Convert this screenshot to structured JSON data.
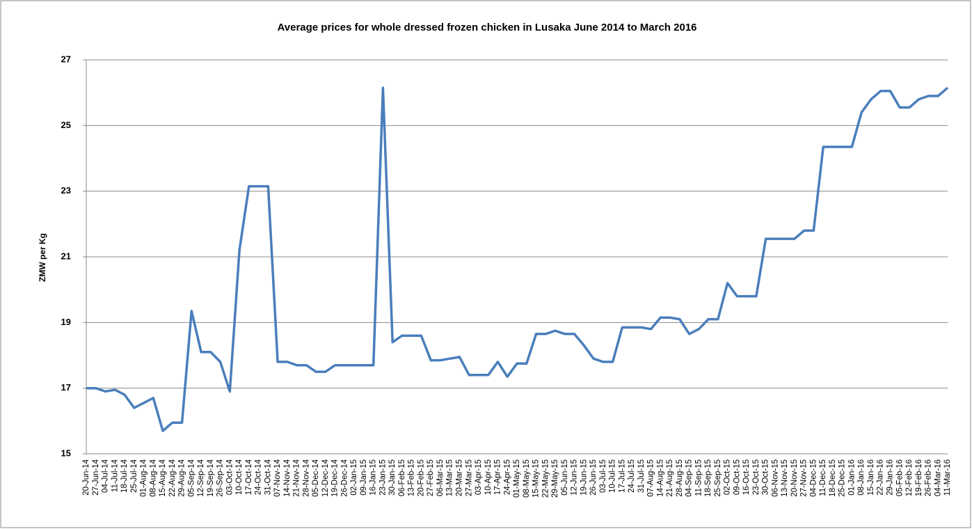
{
  "chart_data": {
    "type": "line",
    "title": "Average prices for whole dressed frozen chicken in Lusaka June 2014 to  March 2016",
    "y_label": "ZMW per Kg",
    "categories": [
      "20-Jun-14",
      "27-Jun-14",
      "04-Jul-14",
      "11-Jul-14",
      "18-Jul-14",
      "25-Jul-14",
      "01-Aug-14",
      "08-Aug-14",
      "15-Aug-14",
      "22-Aug-14",
      "29-Aug-14",
      "05-Sep-14",
      "12-Sep-14",
      "19-Sep-14",
      "26-Sep-14",
      "03-Oct-14",
      "10-Oct-14",
      "17-Oct-14",
      "24-Oct-14",
      "31-Oct-14",
      "07-Nov-14",
      "14-Nov-14",
      "21-Nov-14",
      "28-Nov-14",
      "05-Dec-14",
      "12-Dec-14",
      "19-Dec-14",
      "26-Dec-14",
      "02-Jan-15",
      "09-Jan-15",
      "16-Jan-15",
      "23-Jan-15",
      "30-Jan-15",
      "06-Feb-15",
      "13-Feb-15",
      "20-Feb-15",
      "27-Feb-15",
      "06-Mar-15",
      "13-Mar-15",
      "20-Mar-15",
      "27-Mar-15",
      "03-Apr-15",
      "10-Apr-15",
      "17-Apr-15",
      "24-Apr-15",
      "01-May-15",
      "08-May-15",
      "15-May-15",
      "22-May-15",
      "29-May-15",
      "05-Jun-15",
      "12-Jun-15",
      "19-Jun-15",
      "26-Jun-15",
      "03-Jul-15",
      "10-Jul-15",
      "17-Jul-15",
      "24-Jul-15",
      "31-Jul-15",
      "07-Aug-15",
      "14-Aug-15",
      "21-Aug-15",
      "28-Aug-15",
      "04-Sep-15",
      "11-Sep-15",
      "18-Sep-15",
      "25-Sep-15",
      "02-Oct-15",
      "09-Oct-15",
      "16-Oct-15",
      "23-Oct-15",
      "30-Oct-15",
      "06-Nov-15",
      "13-Nov-15",
      "20-Nov-15",
      "27-Nov-15",
      "04-Dec-15",
      "11-Dec-15",
      "18-Dec-15",
      "25-Dec-15",
      "01-Jan-16",
      "08-Jan-16",
      "15-Jan-16",
      "22-Jan-16",
      "29-Jan-16",
      "05-Feb-16",
      "12-Feb-16",
      "19-Feb-16",
      "26-Feb-16",
      "04-Mar-16",
      "11-Mar-16"
    ],
    "values": [
      17.0,
      17.0,
      16.9,
      16.95,
      16.8,
      16.4,
      16.55,
      16.7,
      15.7,
      15.95,
      15.95,
      19.35,
      18.1,
      18.1,
      17.8,
      16.9,
      21.2,
      23.15,
      23.15,
      23.15,
      17.8,
      17.8,
      17.7,
      17.7,
      17.5,
      17.5,
      17.7,
      17.7,
      17.7,
      17.7,
      17.7,
      26.15,
      18.4,
      18.6,
      18.6,
      18.6,
      17.85,
      17.85,
      17.9,
      17.95,
      17.4,
      17.4,
      17.4,
      17.8,
      17.35,
      17.75,
      17.75,
      18.65,
      18.65,
      18.75,
      18.65,
      18.65,
      18.3,
      17.9,
      17.8,
      17.8,
      18.85,
      18.85,
      18.85,
      18.8,
      19.15,
      19.15,
      19.1,
      18.65,
      18.8,
      19.1,
      19.1,
      20.2,
      19.8,
      19.8,
      19.8,
      21.55,
      21.55,
      21.55,
      21.55,
      21.8,
      21.8,
      24.35,
      24.35,
      24.35,
      24.35,
      25.4,
      25.8,
      26.05,
      26.05,
      25.55,
      25.55,
      25.8,
      25.9,
      25.9,
      26.15
    ],
    "color": "#4a7ebb",
    "ylim": [
      15,
      27
    ],
    "yticks": [
      15,
      17,
      19,
      21,
      23,
      25,
      27
    ],
    "grid": true
  }
}
